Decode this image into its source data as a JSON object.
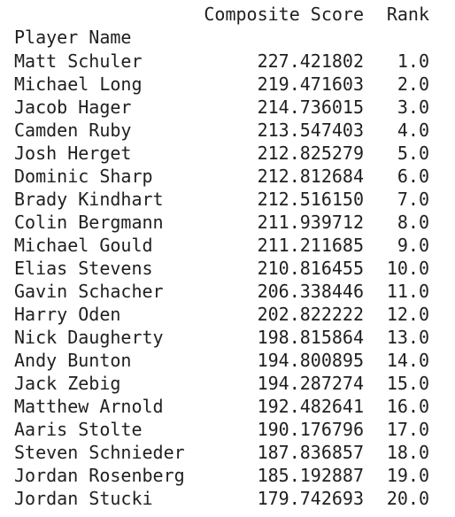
{
  "table": {
    "columns": [
      "Composite Score",
      "Rank"
    ],
    "index_name": "Player Name",
    "rows": [
      {
        "name": "Matt Schuler",
        "score": "227.421802",
        "rank": "1.0"
      },
      {
        "name": "Michael Long",
        "score": "219.471603",
        "rank": "2.0"
      },
      {
        "name": "Jacob Hager",
        "score": "214.736015",
        "rank": "3.0"
      },
      {
        "name": "Camden Ruby",
        "score": "213.547403",
        "rank": "4.0"
      },
      {
        "name": "Josh Herget",
        "score": "212.825279",
        "rank": "5.0"
      },
      {
        "name": "Dominic Sharp",
        "score": "212.812684",
        "rank": "6.0"
      },
      {
        "name": "Brady Kindhart",
        "score": "212.516150",
        "rank": "7.0"
      },
      {
        "name": "Colin Bergmann",
        "score": "211.939712",
        "rank": "8.0"
      },
      {
        "name": "Michael Gould",
        "score": "211.211685",
        "rank": "9.0"
      },
      {
        "name": "Elias Stevens",
        "score": "210.816455",
        "rank": "10.0"
      },
      {
        "name": "Gavin Schacher",
        "score": "206.338446",
        "rank": "11.0"
      },
      {
        "name": "Harry Oden",
        "score": "202.822222",
        "rank": "12.0"
      },
      {
        "name": "Nick Daugherty",
        "score": "198.815864",
        "rank": "13.0"
      },
      {
        "name": "Andy Bunton",
        "score": "194.800895",
        "rank": "14.0"
      },
      {
        "name": "Jack Zebig",
        "score": "194.287274",
        "rank": "15.0"
      },
      {
        "name": "Matthew Arnold",
        "score": "192.482641",
        "rank": "16.0"
      },
      {
        "name": "Aaris Stolte",
        "score": "190.176796",
        "rank": "17.0"
      },
      {
        "name": "Steven Schnieder",
        "score": "187.836857",
        "rank": "18.0"
      },
      {
        "name": "Jordan Rosenberg",
        "score": "185.192887",
        "rank": "19.0"
      },
      {
        "name": "Jordan Stucki",
        "score": "179.742693",
        "rank": "20.0"
      }
    ]
  }
}
